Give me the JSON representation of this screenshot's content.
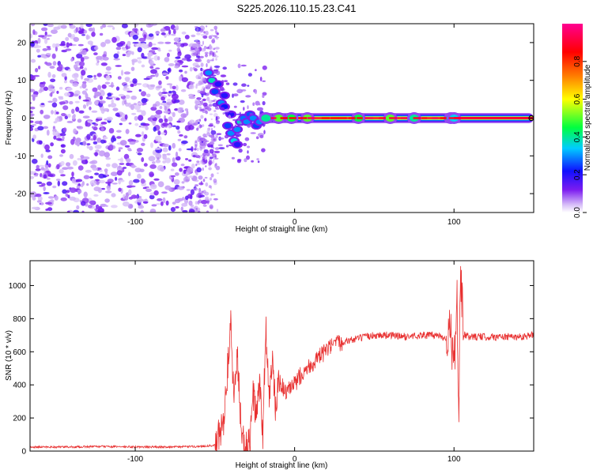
{
  "title": "S225.2026.110.15.23.C41",
  "chart_data": [
    {
      "type": "heatmap",
      "name": "spectrogram",
      "xlabel": "Height of straight line (km)",
      "ylabel": "Frequency (Hz)",
      "xlim": [
        -166,
        150
      ],
      "ylim": [
        -25,
        25
      ],
      "x_ticks": [
        -100,
        0,
        100
      ],
      "y_ticks": [
        -20,
        -10,
        0,
        10,
        20
      ],
      "colorbar": {
        "label": "Normalized spectral amplitude",
        "range": [
          0,
          1
        ],
        "ticks": [
          0.0,
          0.2,
          0.4,
          0.6,
          0.8
        ],
        "colormap": [
          "#ffffff",
          "#7c1cf0",
          "#1010ff",
          "#00ccff",
          "#00ff40",
          "#ffff00",
          "#ff8000",
          "#ff0000",
          "#ff0090"
        ]
      },
      "features": [
        {
          "region": "noise",
          "x_range": [
            -166,
            -60
          ],
          "freq_range": [
            -25,
            25
          ],
          "amplitude": 0.15
        },
        {
          "region": "transition",
          "x_range": [
            -60,
            -20
          ],
          "freq_center": [
            12,
            4,
            -6,
            -2
          ],
          "amplitude": 0.4
        },
        {
          "region": "tone",
          "x_range": [
            -20,
            150
          ],
          "freq": 0,
          "amplitude": 0.95
        }
      ]
    },
    {
      "type": "line",
      "name": "snr",
      "xlabel": "Height of straight line (km)",
      "ylabel": "SNR (10 * v/v)",
      "xlim": [
        -166,
        150
      ],
      "ylim": [
        0,
        1150
      ],
      "x_ticks": [
        -100,
        0,
        100
      ],
      "y_ticks": [
        0,
        200,
        400,
        600,
        800,
        1000
      ],
      "color": "#e83030",
      "series": [
        {
          "name": "SNR",
          "x": [
            -166,
            -140,
            -120,
            -100,
            -80,
            -60,
            -50,
            -45,
            -42,
            -40,
            -38,
            -36,
            -34,
            -32,
            -30,
            -28,
            -26,
            -24,
            -22,
            -20,
            -18,
            -16,
            -14,
            -12,
            -10,
            -5,
            0,
            5,
            10,
            15,
            20,
            25,
            30,
            40,
            50,
            60,
            70,
            80,
            90,
            95,
            98,
            100,
            102,
            103,
            104,
            106,
            110,
            120,
            130,
            140,
            150
          ],
          "y": [
            25,
            25,
            28,
            25,
            25,
            28,
            35,
            150,
            500,
            750,
            300,
            600,
            200,
            50,
            20,
            40,
            350,
            200,
            400,
            100,
            750,
            300,
            550,
            250,
            420,
            350,
            400,
            480,
            520,
            560,
            610,
            640,
            660,
            680,
            700,
            700,
            690,
            700,
            700,
            680,
            720,
            500,
            900,
            150,
            1100,
            700,
            690,
            690,
            690,
            690,
            700
          ]
        }
      ]
    }
  ]
}
